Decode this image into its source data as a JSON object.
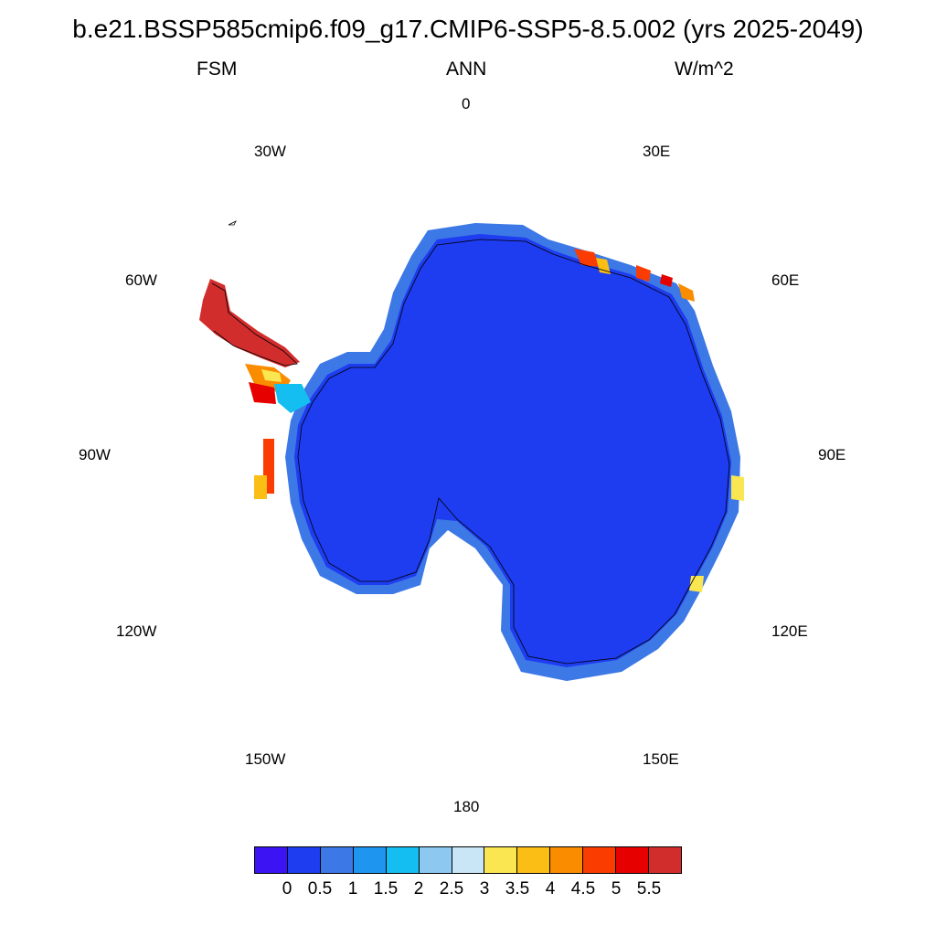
{
  "title": "b.e21.BSSP585cmip6.f09_g17.CMIP6-SSP5-8.5.002 (yrs 2025-2049)",
  "subtitle_left": "FSM",
  "subtitle_center": "ANN",
  "subtitle_right": "W/m^2",
  "map": {
    "projection": "south-polar-stereographic",
    "longitude_labels": [
      "0",
      "30E",
      "60E",
      "90E",
      "120E",
      "150E",
      "180",
      "150W",
      "120W",
      "90W",
      "60W",
      "30W"
    ],
    "coastlines": true
  },
  "colorbar": {
    "colors": [
      "#3c14f4",
      "#1e3cf0",
      "#3c78e6",
      "#1e96f0",
      "#14bef0",
      "#8cc8f0",
      "#c8e6f5",
      "#fae650",
      "#fabe14",
      "#fa8c00",
      "#fa3c00",
      "#e60000",
      "#d22d2d"
    ],
    "labels": [
      "0",
      "0.5",
      "1",
      "1.5",
      "2",
      "2.5",
      "3",
      "3.5",
      "4",
      "4.5",
      "5",
      "5.5"
    ]
  }
}
